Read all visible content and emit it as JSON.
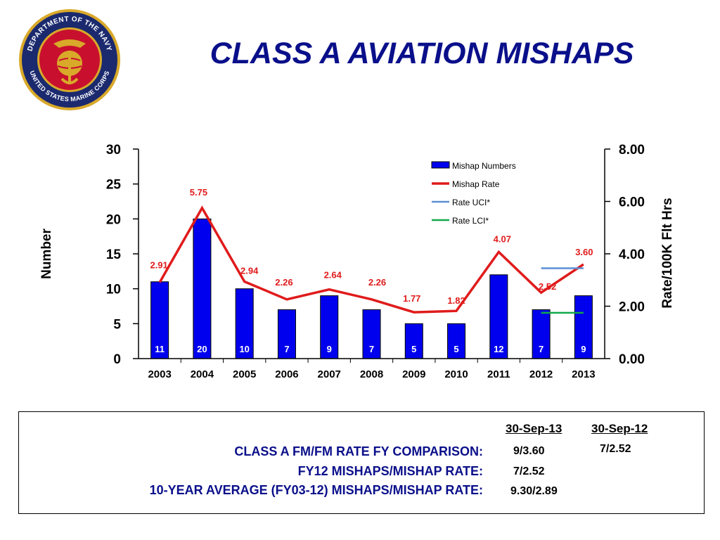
{
  "title": "CLASS A AVIATION MISHAPS",
  "seal": {
    "top_text": "DEPARTMENT OF THE NAVY",
    "bottom_text": "UNITED STATES MARINE CORPS",
    "colors": {
      "ring": "#1b2a6e",
      "gold": "#d9a92a",
      "red": "#c8102e"
    }
  },
  "chart_data": {
    "type": "bar",
    "categories": [
      "2003",
      "2004",
      "2005",
      "2006",
      "2007",
      "2008",
      "2009",
      "2010",
      "2011",
      "2012",
      "2013"
    ],
    "ylabel": "Number",
    "y2label": "Rate/100K Flt Hrs",
    "ylim": [
      0,
      30
    ],
    "yticks": [
      "0",
      "5",
      "10",
      "15",
      "20",
      "25",
      "30"
    ],
    "y2lim": [
      0,
      8
    ],
    "y2ticks": [
      "0.00",
      "2.00",
      "4.00",
      "6.00",
      "8.00"
    ],
    "legend_position": "top-right",
    "grid": false,
    "series": [
      {
        "name": "Mishap Numbers",
        "kind": "bar",
        "color": "#0000ee",
        "values": [
          11,
          20,
          10,
          7,
          9,
          7,
          5,
          5,
          12,
          7,
          9
        ],
        "labels": [
          "11",
          "20",
          "10",
          "7",
          "9",
          "7",
          "5",
          "5",
          "12",
          "7",
          "9"
        ]
      },
      {
        "name": "Mishap Rate",
        "kind": "line",
        "color": "#e01b1b",
        "axis": "right",
        "values": [
          2.91,
          5.75,
          2.94,
          2.26,
          2.64,
          2.26,
          1.77,
          1.82,
          4.07,
          2.52,
          3.6
        ],
        "labels": [
          "2.91",
          "5.75",
          "2.94",
          "2.26",
          "2.64",
          "2.26",
          "1.77",
          "1.82",
          "4.07",
          "2.52",
          "3.60"
        ]
      },
      {
        "name": "Rate UCI*",
        "kind": "segment",
        "color": "#5b8fd4",
        "axis": "right",
        "x_range": [
          "2012",
          "2013"
        ],
        "value": 3.45
      },
      {
        "name": "Rate LCI*",
        "kind": "segment",
        "color": "#12a84a",
        "axis": "right",
        "x_range": [
          "2012",
          "2013"
        ],
        "value": 1.75
      }
    ]
  },
  "summary": {
    "col_headers": [
      "30-Sep-13",
      "30-Sep-12"
    ],
    "rows": [
      {
        "label": "CLASS A FM/FM RATE FY COMPARISON:",
        "value": "9/3.60",
        "value2": "7/2.52"
      },
      {
        "label": "FY12 MISHAPS/MISHAP RATE:",
        "value": "7/2.52"
      },
      {
        "label": "10-YEAR AVERAGE (FY03-12) MISHAPS/MISHAP RATE:",
        "value": "9.30/2.89"
      }
    ]
  }
}
